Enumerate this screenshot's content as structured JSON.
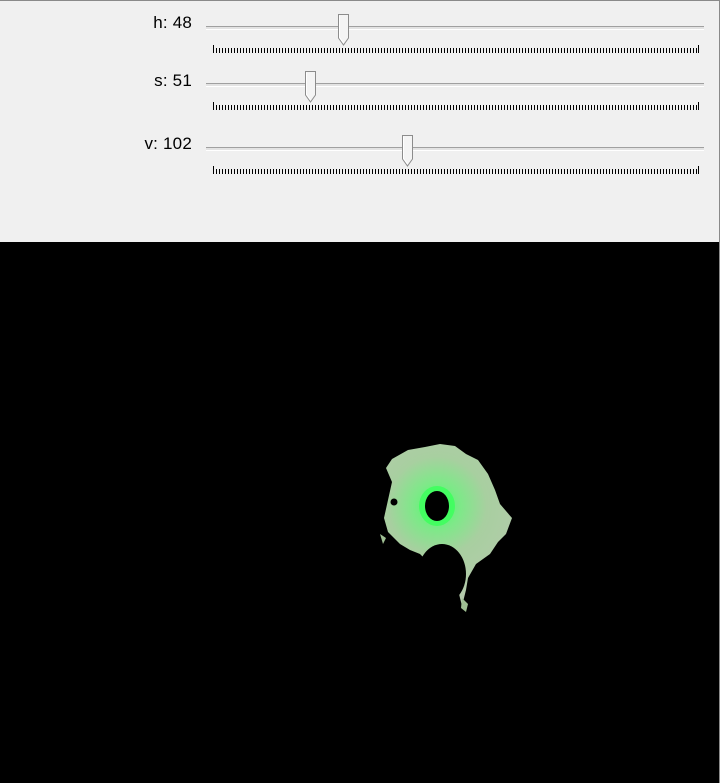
{
  "trackbars": [
    {
      "label": "h: 48",
      "value": 48,
      "max": 179
    },
    {
      "label": "s: 51",
      "value": 51,
      "max": 255
    },
    {
      "label": "v: 102",
      "value": 102,
      "max": 255
    }
  ],
  "colors": {
    "panel_bg": "#f0f0f0",
    "image_bg": "#000000",
    "blob_fill": "#9fbf93",
    "glow": "#4cff6a"
  },
  "icons": {
    "thumb": "trackbar-thumb-icon"
  }
}
